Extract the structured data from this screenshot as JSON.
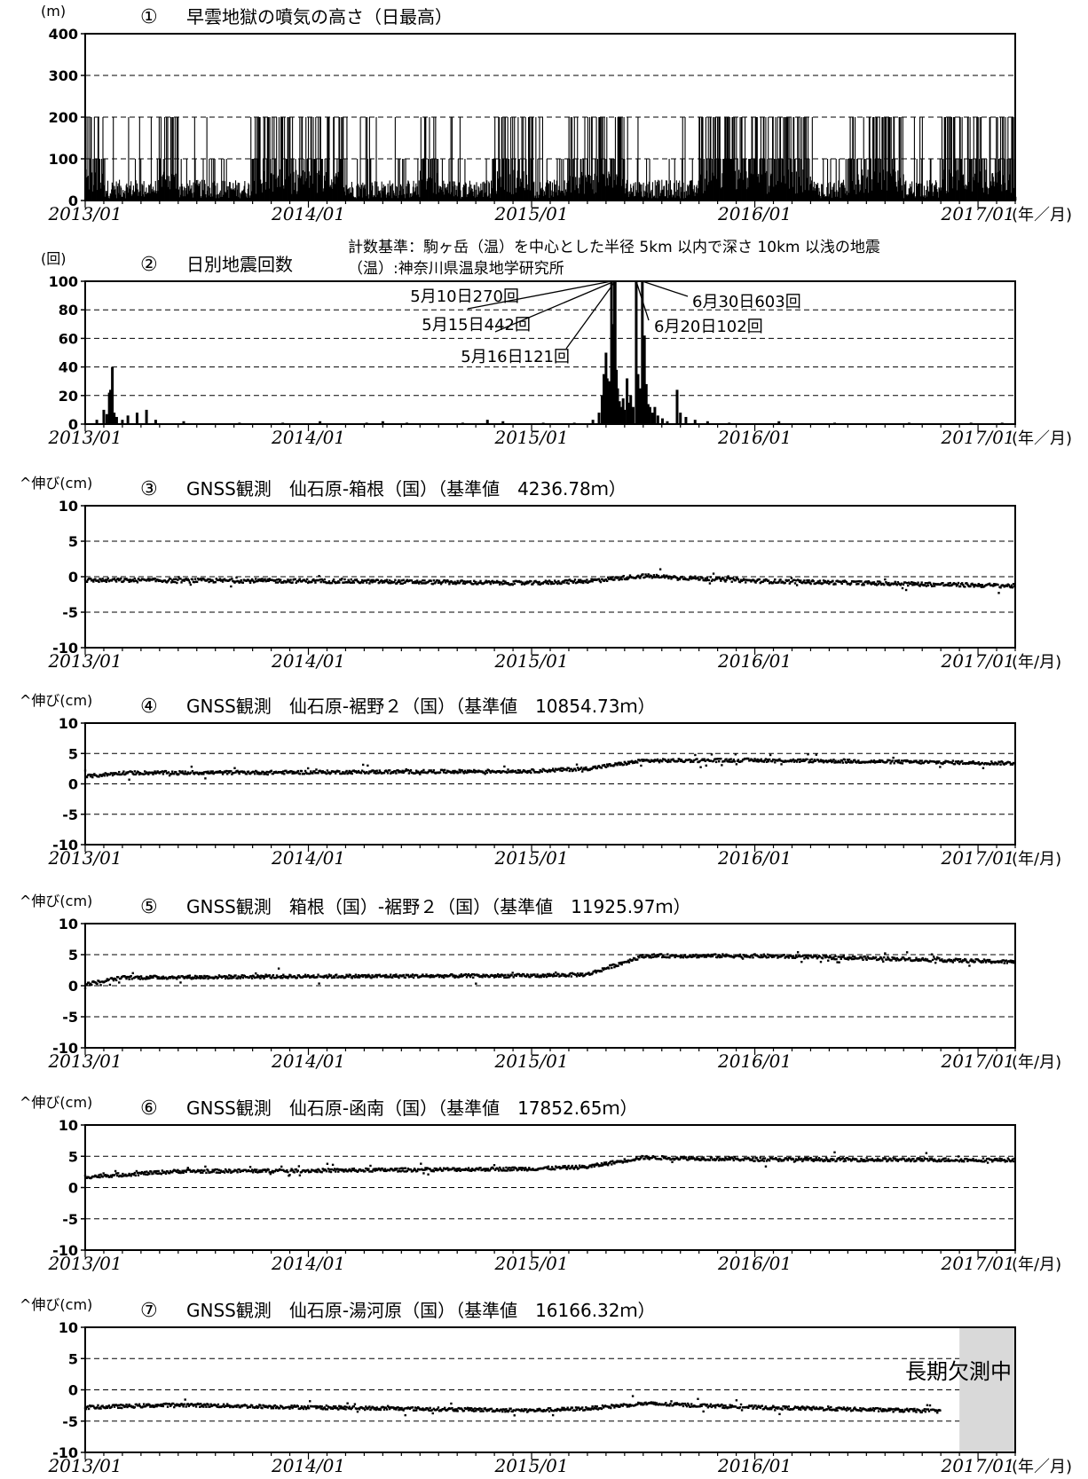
{
  "colors": {
    "ink": "#000000",
    "grid": "#000000",
    "missing_shade": "#d9d9d9",
    "background": "#ffffff"
  },
  "chart_data": [
    {
      "id": "p1",
      "type": "bar",
      "number": "①",
      "title": "早雲地獄の噴気の高さ（日最高）",
      "ylabel": "(m)",
      "x_unit_label": "(年／月)",
      "xlim": [
        "2013/01",
        "2017/03"
      ],
      "ylim": [
        0,
        400
      ],
      "yticks": [
        0,
        100,
        200,
        300,
        400
      ],
      "xticks": [
        "2013/01",
        "2014/01",
        "2015/01",
        "2016/01",
        "2017/01"
      ],
      "grid": "dashed horizontal",
      "description_of_values": "daily maximum plume height, mostly 0–200 m",
      "active_periods_200m": [
        [
          "2013/01",
          "2013/02"
        ],
        [
          "2013/05",
          "2013/06"
        ],
        [
          "2013/10",
          "2014/03"
        ],
        [
          "2014/07",
          "2014/08"
        ],
        [
          "2014/11",
          "2015/01"
        ],
        [
          "2015/03",
          "2015/06"
        ],
        [
          "2015/10",
          "2016/04"
        ],
        [
          "2016/06",
          "2016/09"
        ],
        [
          "2016/11",
          "2017/03"
        ]
      ]
    },
    {
      "id": "p2",
      "type": "bar",
      "number": "②",
      "title": "日別地震回数",
      "ylabel": "(回)",
      "x_unit_label": "(年／月)",
      "note_line1": "計数基準：駒ヶ岳（温）を中心とした半径 5km 以内で深さ 10km 以浅の地震",
      "note_line2": "（温）:神奈川県温泉地学研究所",
      "xlim": [
        "2013/01",
        "2017/03"
      ],
      "ylim": [
        0,
        100
      ],
      "yticks": [
        0,
        20,
        40,
        60,
        80,
        100
      ],
      "xticks": [
        "2013/01",
        "2014/01",
        "2015/01",
        "2016/01",
        "2017/01"
      ],
      "grid": "dashed horizontal",
      "bars": [
        {
          "x": "2013/01/20",
          "y": 3
        },
        {
          "x": "2013/02/01",
          "y": 10
        },
        {
          "x": "2013/02/06",
          "y": 7
        },
        {
          "x": "2013/02/10",
          "y": 22
        },
        {
          "x": "2013/02/12",
          "y": 24
        },
        {
          "x": "2013/02/15",
          "y": 40
        },
        {
          "x": "2013/02/18",
          "y": 8
        },
        {
          "x": "2013/02/22",
          "y": 5
        },
        {
          "x": "2013/03/01",
          "y": 3
        },
        {
          "x": "2013/03/10",
          "y": 6
        },
        {
          "x": "2013/03/25",
          "y": 8
        },
        {
          "x": "2013/04/10",
          "y": 10
        },
        {
          "x": "2013/04/25",
          "y": 3
        },
        {
          "x": "2013/06/10",
          "y": 2
        },
        {
          "x": "2013/09/10",
          "y": 1
        },
        {
          "x": "2013/11/20",
          "y": 1
        },
        {
          "x": "2014/01/20",
          "y": 2
        },
        {
          "x": "2014/04/05",
          "y": 1
        },
        {
          "x": "2014/05/01",
          "y": 2
        },
        {
          "x": "2014/06/10",
          "y": 1
        },
        {
          "x": "2014/09/10",
          "y": 1
        },
        {
          "x": "2014/10/20",
          "y": 3
        },
        {
          "x": "2014/11/15",
          "y": 2
        },
        {
          "x": "2015/01/20",
          "y": 1
        },
        {
          "x": "2015/03/10",
          "y": 1
        },
        {
          "x": "2015/04/10",
          "y": 3
        },
        {
          "x": "2015/04/20",
          "y": 8
        },
        {
          "x": "2015/04/25",
          "y": 20
        },
        {
          "x": "2015/04/28",
          "y": 35
        },
        {
          "x": "2015/05/01",
          "y": 50
        },
        {
          "x": "2015/05/03",
          "y": 32
        },
        {
          "x": "2015/05/05",
          "y": 25
        },
        {
          "x": "2015/05/07",
          "y": 30
        },
        {
          "x": "2015/05/10",
          "y": 100
        },
        {
          "x": "2015/05/12",
          "y": 70
        },
        {
          "x": "2015/05/15",
          "y": 100
        },
        {
          "x": "2015/05/16",
          "y": 100
        },
        {
          "x": "2015/05/18",
          "y": 38
        },
        {
          "x": "2015/05/20",
          "y": 25
        },
        {
          "x": "2015/05/23",
          "y": 16
        },
        {
          "x": "2015/05/26",
          "y": 12
        },
        {
          "x": "2015/05/29",
          "y": 18
        },
        {
          "x": "2015/06/01",
          "y": 10
        },
        {
          "x": "2015/06/05",
          "y": 32
        },
        {
          "x": "2015/06/08",
          "y": 15
        },
        {
          "x": "2015/06/11",
          "y": 20
        },
        {
          "x": "2015/06/15",
          "y": 12
        },
        {
          "x": "2015/06/20",
          "y": 100
        },
        {
          "x": "2015/06/23",
          "y": 35
        },
        {
          "x": "2015/06/26",
          "y": 25
        },
        {
          "x": "2015/06/30",
          "y": 100
        },
        {
          "x": "2015/07/03",
          "y": 62
        },
        {
          "x": "2015/07/06",
          "y": 28
        },
        {
          "x": "2015/07/09",
          "y": 14
        },
        {
          "x": "2015/07/12",
          "y": 12
        },
        {
          "x": "2015/07/16",
          "y": 8
        },
        {
          "x": "2015/07/20",
          "y": 12
        },
        {
          "x": "2015/07/25",
          "y": 6
        },
        {
          "x": "2015/08/02",
          "y": 4
        },
        {
          "x": "2015/08/10",
          "y": 2
        },
        {
          "x": "2015/08/26",
          "y": 24
        },
        {
          "x": "2015/09/01",
          "y": 8
        },
        {
          "x": "2015/09/10",
          "y": 5
        },
        {
          "x": "2015/09/25",
          "y": 3
        },
        {
          "x": "2015/10/15",
          "y": 2
        },
        {
          "x": "2015/11/20",
          "y": 1
        },
        {
          "x": "2016/02/10",
          "y": 2
        },
        {
          "x": "2016/05/10",
          "y": 1
        },
        {
          "x": "2016/09/10",
          "y": 1
        },
        {
          "x": "2016/12/20",
          "y": 1
        },
        {
          "x": "2017/02/10",
          "y": 1
        }
      ],
      "annotations": [
        {
          "label": "5月10日270回",
          "date": "2015/05/10"
        },
        {
          "label": "5月15日442回",
          "date": "2015/05/15"
        },
        {
          "label": "5月16日121回",
          "date": "2015/05/16"
        },
        {
          "label": "6月20日102回",
          "date": "2015/06/20"
        },
        {
          "label": "6月30日603回",
          "date": "2015/06/30"
        }
      ]
    },
    {
      "id": "p3",
      "type": "scatter",
      "number": "③",
      "title": "GNSS観測　仙石原-箱根（国）（基準値　4236.78ｍ）",
      "ylabel": "^伸び(cm)",
      "x_unit_label": "(年/月)",
      "xlim": [
        "2013/01",
        "2017/03"
      ],
      "ylim": [
        -10,
        10
      ],
      "yticks": [
        -10,
        -5,
        0,
        5,
        10
      ],
      "xticks": [
        "2013/01",
        "2014/01",
        "2015/01",
        "2016/01",
        "2017/01"
      ],
      "grid": "dashed horizontal",
      "trend": [
        {
          "x": "2013/01",
          "y": -0.5
        },
        {
          "x": "2014/01",
          "y": -0.6
        },
        {
          "x": "2015/01",
          "y": -0.9
        },
        {
          "x": "2015/04",
          "y": -0.6
        },
        {
          "x": "2015/07",
          "y": 0.1
        },
        {
          "x": "2016/01",
          "y": -0.6
        },
        {
          "x": "2017/03",
          "y": -1.3
        }
      ]
    },
    {
      "id": "p4",
      "type": "scatter",
      "number": "④",
      "title": "GNSS観測　仙石原-裾野２（国）（基準値　10854.73ｍ）",
      "ylabel": "^伸び(cm)",
      "x_unit_label": "(年/月)",
      "xlim": [
        "2013/01",
        "2017/03"
      ],
      "ylim": [
        -10,
        10
      ],
      "yticks": [
        -10,
        -5,
        0,
        5,
        10
      ],
      "xticks": [
        "2013/01",
        "2014/01",
        "2015/01",
        "2016/01",
        "2017/01"
      ],
      "grid": "dashed horizontal",
      "trend": [
        {
          "x": "2013/01",
          "y": 1.2
        },
        {
          "x": "2013/03",
          "y": 1.8
        },
        {
          "x": "2014/01",
          "y": 1.9
        },
        {
          "x": "2015/01",
          "y": 2.1
        },
        {
          "x": "2015/04",
          "y": 2.5
        },
        {
          "x": "2015/07",
          "y": 3.8
        },
        {
          "x": "2016/01",
          "y": 3.9
        },
        {
          "x": "2017/03",
          "y": 3.4
        }
      ]
    },
    {
      "id": "p5",
      "type": "scatter",
      "number": "⑤",
      "title": "GNSS観測　箱根（国）-裾野２（国）（基準値　11925.97ｍ）",
      "ylabel": "^伸び(cm)",
      "x_unit_label": "(年/月)",
      "xlim": [
        "2013/01",
        "2017/03"
      ],
      "ylim": [
        -10,
        10
      ],
      "yticks": [
        -10,
        -5,
        0,
        5,
        10
      ],
      "xticks": [
        "2013/01",
        "2014/01",
        "2015/01",
        "2016/01",
        "2017/01"
      ],
      "grid": "dashed horizontal",
      "trend": [
        {
          "x": "2013/01",
          "y": 0.2
        },
        {
          "x": "2013/03",
          "y": 1.3
        },
        {
          "x": "2014/01",
          "y": 1.5
        },
        {
          "x": "2015/01",
          "y": 1.6
        },
        {
          "x": "2015/04",
          "y": 1.8
        },
        {
          "x": "2015/07",
          "y": 4.8
        },
        {
          "x": "2016/01",
          "y": 4.8
        },
        {
          "x": "2016/09",
          "y": 4.3
        },
        {
          "x": "2017/03",
          "y": 3.8
        }
      ]
    },
    {
      "id": "p6",
      "type": "scatter",
      "number": "⑥",
      "title": "GNSS観測　仙石原-函南（国）（基準値　17852.65ｍ）",
      "ylabel": "^伸び(cm)",
      "x_unit_label": "(年/月)",
      "xlim": [
        "2013/01",
        "2017/03"
      ],
      "ylim": [
        -10,
        10
      ],
      "yticks": [
        -10,
        -5,
        0,
        5,
        10
      ],
      "xticks": [
        "2013/01",
        "2014/01",
        "2015/01",
        "2016/01",
        "2017/01"
      ],
      "grid": "dashed horizontal",
      "trend": [
        {
          "x": "2013/01",
          "y": 1.7
        },
        {
          "x": "2013/06",
          "y": 2.6
        },
        {
          "x": "2014/01",
          "y": 2.7
        },
        {
          "x": "2015/01",
          "y": 3.0
        },
        {
          "x": "2015/04",
          "y": 3.3
        },
        {
          "x": "2015/07",
          "y": 4.8
        },
        {
          "x": "2016/01",
          "y": 4.5
        },
        {
          "x": "2017/03",
          "y": 4.4
        }
      ]
    },
    {
      "id": "p7",
      "type": "scatter",
      "number": "⑦",
      "title": "GNSS観測　仙石原-湯河原（国）（基準値　16166.32ｍ）",
      "ylabel": "^伸び(cm)",
      "x_unit_label": "(年／月)",
      "xlim": [
        "2013/01",
        "2017/03"
      ],
      "ylim": [
        -10,
        10
      ],
      "yticks": [
        -10,
        -5,
        0,
        5,
        10
      ],
      "xticks": [
        "2013/01",
        "2014/01",
        "2015/01",
        "2016/01",
        "2017/01"
      ],
      "grid": "dashed horizontal",
      "missing_from": "2016/12",
      "missing_label": "長期欠測中",
      "trend": [
        {
          "x": "2013/01",
          "y": -2.8
        },
        {
          "x": "2013/06",
          "y": -2.4
        },
        {
          "x": "2014/01",
          "y": -2.8
        },
        {
          "x": "2015/01",
          "y": -3.3
        },
        {
          "x": "2015/04",
          "y": -3.0
        },
        {
          "x": "2015/07",
          "y": -2.2
        },
        {
          "x": "2016/01",
          "y": -2.8
        },
        {
          "x": "2016/11",
          "y": -3.4
        }
      ]
    }
  ]
}
